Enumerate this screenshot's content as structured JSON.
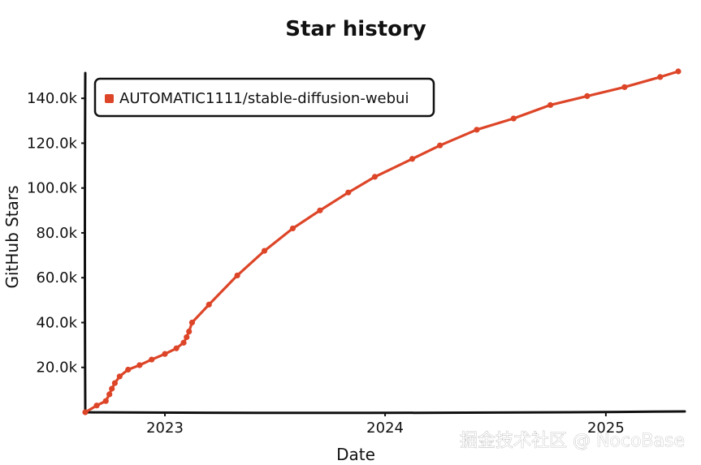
{
  "chart_data": {
    "type": "line",
    "title": "Star history",
    "xlabel": "Date",
    "ylabel": "GitHub Stars",
    "x_range": [
      "2022-08-22",
      "2025-05-01"
    ],
    "ylim": [
      0,
      152000
    ],
    "x_ticks": [
      {
        "date": "2023-01-01",
        "label": "2023"
      },
      {
        "date": "2024-01-01",
        "label": "2024"
      },
      {
        "date": "2025-01-01",
        "label": "2025"
      }
    ],
    "y_ticks": [
      {
        "value": 20000,
        "label": "20.0k"
      },
      {
        "value": 40000,
        "label": "40.0k"
      },
      {
        "value": 60000,
        "label": "60.0k"
      },
      {
        "value": 80000,
        "label": "80.0k"
      },
      {
        "value": 100000,
        "label": "100.0k"
      },
      {
        "value": 120000,
        "label": "120.0k"
      },
      {
        "value": 140000,
        "label": "140.0k"
      }
    ],
    "legend": {
      "position": "top-left",
      "entries": [
        "AUTOMATIC1111/stable-diffusion-webui"
      ]
    },
    "grid": false,
    "series": [
      {
        "name": "AUTOMATIC1111/stable-diffusion-webui",
        "color": "#dd4528",
        "points": [
          {
            "x": "2022-08-22",
            "y": 0
          },
          {
            "x": "2022-09-10",
            "y": 3000
          },
          {
            "x": "2022-09-25",
            "y": 5000
          },
          {
            "x": "2022-10-01",
            "y": 8000
          },
          {
            "x": "2022-10-05",
            "y": 10500
          },
          {
            "x": "2022-10-10",
            "y": 13000
          },
          {
            "x": "2022-10-18",
            "y": 16000
          },
          {
            "x": "2022-11-01",
            "y": 19000
          },
          {
            "x": "2022-11-20",
            "y": 21000
          },
          {
            "x": "2022-12-10",
            "y": 23500
          },
          {
            "x": "2023-01-01",
            "y": 26000
          },
          {
            "x": "2023-01-20",
            "y": 28500
          },
          {
            "x": "2023-02-01",
            "y": 31000
          },
          {
            "x": "2023-02-06",
            "y": 33500
          },
          {
            "x": "2023-02-10",
            "y": 36000
          },
          {
            "x": "2023-02-15",
            "y": 40000
          },
          {
            "x": "2023-03-15",
            "y": 48000
          },
          {
            "x": "2023-05-01",
            "y": 61000
          },
          {
            "x": "2023-06-15",
            "y": 72000
          },
          {
            "x": "2023-08-01",
            "y": 82000
          },
          {
            "x": "2023-09-15",
            "y": 90000
          },
          {
            "x": "2023-11-01",
            "y": 98000
          },
          {
            "x": "2023-12-15",
            "y": 105000
          },
          {
            "x": "2024-02-15",
            "y": 113000
          },
          {
            "x": "2024-04-01",
            "y": 119000
          },
          {
            "x": "2024-06-01",
            "y": 126000
          },
          {
            "x": "2024-08-01",
            "y": 131000
          },
          {
            "x": "2024-10-01",
            "y": 137000
          },
          {
            "x": "2024-12-01",
            "y": 141000
          },
          {
            "x": "2025-02-01",
            "y": 145000
          },
          {
            "x": "2025-04-01",
            "y": 149500
          },
          {
            "x": "2025-05-01",
            "y": 152000
          }
        ]
      }
    ]
  },
  "watermark": "掘金技术社区 @ NocoBase"
}
